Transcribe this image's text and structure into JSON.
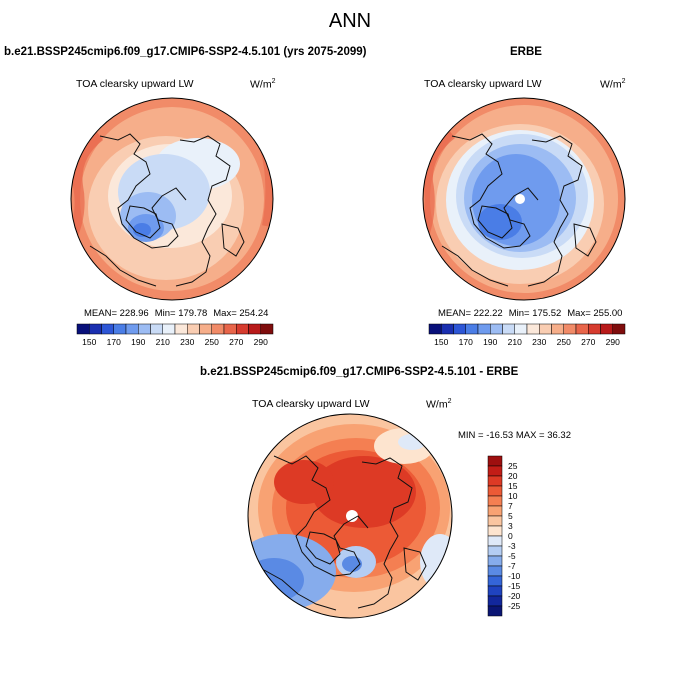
{
  "figure": {
    "title": "ANN"
  },
  "panels": [
    {
      "title": "b.e21.BSSP245cmip6.f09_g17.CMIP6-SSP2-4.5.101 (yrs 2075-2099)",
      "variable": "TOA clearsky upward LW",
      "units_base": "W/m",
      "units_exp": "2",
      "stats": {
        "mean": "MEAN= 228.96",
        "min": "Min= 179.78",
        "max": "Max= 254.24"
      }
    },
    {
      "title": "ERBE",
      "variable": "TOA clearsky upward LW",
      "units_base": "W/m",
      "units_exp": "2",
      "stats": {
        "mean": "MEAN= 222.22",
        "min": "Min= 175.52",
        "max": "Max= 255.00"
      }
    },
    {
      "title": "b.e21.BSSP245cmip6.f09_g17.CMIP6-SSP2-4.5.101 - ERBE",
      "variable": "TOA clearsky upward LW",
      "units_base": "W/m",
      "units_exp": "2",
      "stats": {
        "minmax": "MIN = -16.53 MAX =  36.32"
      }
    }
  ],
  "chart_data": [
    {
      "type": "heatmap",
      "projection": "north-polar-stereographic",
      "colorbar": {
        "orientation": "horizontal",
        "tick_labels": [
          "150",
          "170",
          "190",
          "210",
          "230",
          "250",
          "270",
          "290"
        ],
        "colors": [
          "#08107a",
          "#1a2fb0",
          "#2d56d6",
          "#4a7de6",
          "#6f9bee",
          "#9cbcf3",
          "#c9dbf6",
          "#e9f1fa",
          "#fbe8da",
          "#f9cdb2",
          "#f6ae8a",
          "#f18b68",
          "#e8654a",
          "#d63b2e",
          "#b81a1a",
          "#7f0d0d"
        ]
      },
      "stats": {
        "mean": 228.96,
        "min": 179.78,
        "max": 254.24
      }
    },
    {
      "type": "heatmap",
      "projection": "north-polar-stereographic",
      "colorbar": {
        "orientation": "horizontal",
        "tick_labels": [
          "150",
          "170",
          "190",
          "210",
          "230",
          "250",
          "270",
          "290"
        ],
        "colors": [
          "#08107a",
          "#1a2fb0",
          "#2d56d6",
          "#4a7de6",
          "#6f9bee",
          "#9cbcf3",
          "#c9dbf6",
          "#e9f1fa",
          "#fbe8da",
          "#f9cdb2",
          "#f6ae8a",
          "#f18b68",
          "#e8654a",
          "#d63b2e",
          "#b81a1a",
          "#7f0d0d"
        ]
      },
      "stats": {
        "mean": 222.22,
        "min": 175.52,
        "max": 255.0
      }
    },
    {
      "type": "heatmap",
      "projection": "north-polar-stereographic",
      "colorbar": {
        "orientation": "vertical",
        "tick_labels": [
          "25",
          "20",
          "15",
          "10",
          "7",
          "5",
          "3",
          "0",
          "-3",
          "-5",
          "-7",
          "-10",
          "-15",
          "-20",
          "-25"
        ],
        "colors": [
          "#9e0f0f",
          "#c21d17",
          "#dd3a25",
          "#ec5a36",
          "#f47f52",
          "#f8a273",
          "#fac5a0",
          "#fde4cf",
          "#dfe9f8",
          "#b4cdf3",
          "#86acec",
          "#5a8ae4",
          "#3465d8",
          "#1f43c0",
          "#12279c",
          "#0a1574"
        ]
      },
      "stats": {
        "min": -16.53,
        "max": 36.32
      }
    }
  ]
}
